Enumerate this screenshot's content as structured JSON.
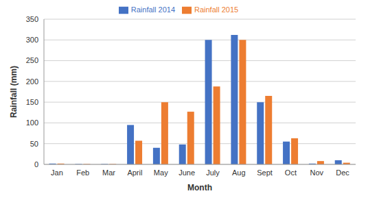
{
  "chart_data": {
    "type": "bar",
    "x_label": "Month",
    "y_label": "Rainfall (mm)",
    "categories": [
      "Jan",
      "Feb",
      "Mar",
      "April",
      "May",
      "June",
      "July",
      "Aug",
      "Sept",
      "Oct",
      "Nov",
      "Dec"
    ],
    "series": [
      {
        "name": "Rainfall 2014",
        "color": "#4472c4",
        "values": [
          2,
          1,
          1,
          95,
          40,
          48,
          300,
          312,
          150,
          55,
          2,
          10
        ]
      },
      {
        "name": "Rainfall 2015",
        "color": "#ed7d31",
        "values": [
          2,
          1,
          1,
          57,
          150,
          127,
          188,
          300,
          165,
          63,
          8,
          4
        ]
      }
    ],
    "ylim": [
      0,
      350
    ],
    "yticks": [
      0,
      50,
      100,
      150,
      200,
      250,
      300,
      350
    ],
    "grid": true,
    "legend": "top"
  }
}
